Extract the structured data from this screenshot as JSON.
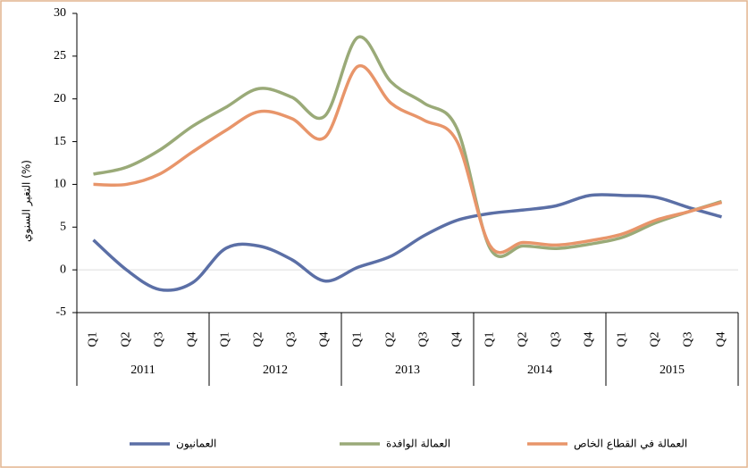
{
  "chart_data": {
    "type": "line",
    "ylabel": "التغير السنوي (%)",
    "categories": [
      "Q1",
      "Q2",
      "Q3",
      "Q4",
      "Q1",
      "Q2",
      "Q3",
      "Q4",
      "Q1",
      "Q2",
      "Q3",
      "Q4",
      "Q1",
      "Q2",
      "Q3",
      "Q4",
      "Q1",
      "Q2",
      "Q3",
      "Q4"
    ],
    "groups": [
      "2011",
      "2012",
      "2013",
      "2014",
      "2015"
    ],
    "series": [
      {
        "name": "العمانيون",
        "color": "#5b6fa6",
        "values": [
          3.5,
          0,
          -2.3,
          -1.5,
          2.5,
          2.8,
          1.2,
          -1.3,
          0.3,
          1.6,
          4,
          5.8,
          6.6,
          7,
          7.5,
          8.7,
          8.7,
          8.5,
          7.3,
          6.2
        ]
      },
      {
        "name": "العمالة الوافدة",
        "color": "#9aaa78",
        "values": [
          11.2,
          12,
          14,
          16.8,
          19,
          21.2,
          20.2,
          18,
          27.2,
          22,
          19.5,
          16.5,
          2.5,
          2.8,
          2.5,
          3,
          3.8,
          5.5,
          6.8,
          8
        ]
      },
      {
        "name": "العمالة في القطاع الخاص",
        "color": "#e8956a",
        "values": [
          10,
          10,
          11.2,
          13.8,
          16.3,
          18.5,
          17.7,
          15.5,
          23.8,
          19.5,
          17.5,
          15,
          2.8,
          3.2,
          2.9,
          3.4,
          4.2,
          5.8,
          6.8,
          7.9
        ]
      }
    ],
    "ylim": [
      -5,
      30
    ],
    "yticks": [
      -5,
      0,
      5,
      10,
      15,
      20,
      25,
      30
    ]
  }
}
